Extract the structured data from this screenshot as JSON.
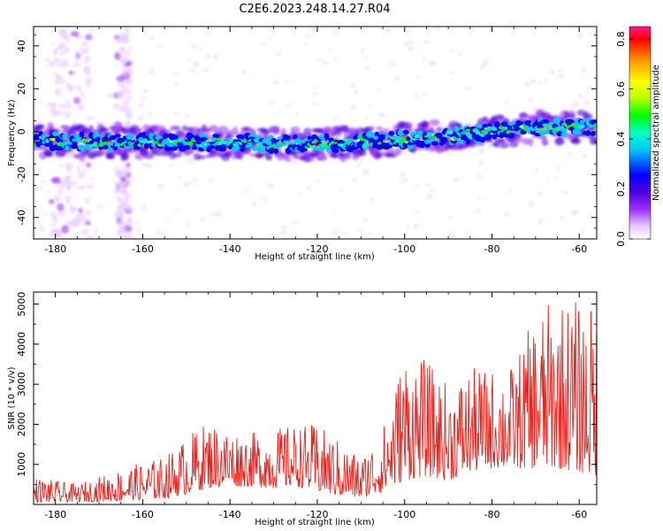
{
  "figure": {
    "title": "C2E6.2023.248.14.27.R04"
  },
  "chart_data": [
    {
      "type": "heatmap",
      "title": "C2E6.2023.248.14.27.R04",
      "xlabel": "Height of straight line (km)",
      "ylabel": "Frequency (Hz)",
      "xlim": [
        -185,
        -56
      ],
      "ylim": [
        -50,
        49
      ],
      "xticks": [
        -180,
        -160,
        -140,
        -120,
        -100,
        -80,
        -60
      ],
      "yticks": [
        -40,
        -20,
        0,
        20,
        40
      ],
      "colorbar": {
        "label": "Normalized spectral amplitude",
        "range": [
          0,
          0.85
        ],
        "ticks": [
          0.0,
          0.2,
          0.4,
          0.6,
          0.8
        ],
        "colormap": [
          "#ffffff",
          "#e6c8ff",
          "#9b30ff",
          "#5000e0",
          "#0000ff",
          "#00c8ff",
          "#00ffc0",
          "#00ff00",
          "#b4ff00",
          "#ffff00",
          "#ff9600",
          "#ff0000",
          "#ff1493"
        ]
      },
      "ridge": {
        "x": [
          -185,
          -170,
          -155,
          -140,
          -125,
          -110,
          -95,
          -80,
          -70,
          -60,
          -56
        ],
        "frequency_hz": [
          -4,
          -5,
          -5,
          -5,
          -6,
          -5,
          -3,
          0,
          2,
          2,
          2
        ]
      },
      "grid": false
    },
    {
      "type": "line",
      "xlabel": "Height of straight line (km)",
      "ylabel": "SNR (10 * v/v)",
      "xlim": [
        -185,
        -56
      ],
      "ylim": [
        0,
        5300
      ],
      "xticks": [
        -180,
        -160,
        -140,
        -120,
        -100,
        -80,
        -60
      ],
      "yticks": [
        1000,
        2000,
        3000,
        4000,
        5000
      ],
      "series": [
        {
          "color": "#e8231d",
          "envelope": {
            "x": [
              -185,
              -175,
              -165,
              -155,
              -150,
              -145,
              -140,
              -135,
              -130,
              -125,
              -120,
              -115,
              -110,
              -105,
              -100,
              -95,
              -90,
              -85,
              -80,
              -75,
              -70,
              -65,
              -60,
              -56
            ],
            "peak": [
              700,
              500,
              900,
              1200,
              1700,
              2100,
              1900,
              1800,
              1900,
              2000,
              2000,
              1600,
              1200,
              1900,
              3900,
              3600,
              3000,
              3400,
              3400,
              3500,
              4800,
              5200,
              5100,
              4900
            ],
            "floor": [
              50,
              60,
              80,
              150,
              250,
              400,
              450,
              450,
              400,
              450,
              300,
              200,
              150,
              300,
              600,
              700,
              600,
              800,
              900,
              900,
              900,
              900,
              800,
              700
            ]
          }
        }
      ],
      "grid": false
    }
  ]
}
